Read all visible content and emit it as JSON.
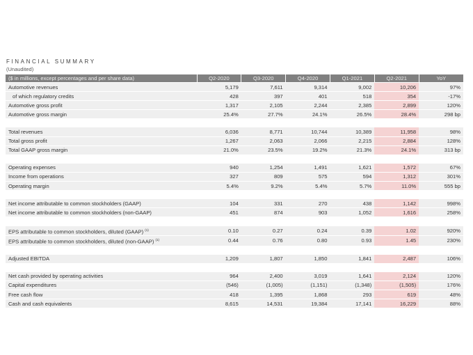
{
  "title": "FINANCIAL SUMMARY",
  "subtitle": "(Unaudited)",
  "header": [
    "($ in millions, except percentages and per share data)",
    "Q2-2020",
    "Q3-2020",
    "Q4-2020",
    "Q1-2021",
    "Q2-2021",
    "YoY"
  ],
  "highlight_color": "#f5d3d3",
  "groups": [
    [
      {
        "label": "Automotive revenues",
        "values": [
          "5,179",
          "7,611",
          "9,314",
          "9,002",
          "10,206",
          "97%"
        ]
      },
      {
        "label": "of which regulatory credits",
        "indent": true,
        "values": [
          "428",
          "397",
          "401",
          "518",
          "354",
          "-17%"
        ]
      },
      {
        "label": "Automotive gross profit",
        "values": [
          "1,317",
          "2,105",
          "2,244",
          "2,385",
          "2,899",
          "120%"
        ]
      },
      {
        "label": "Automotive gross margin",
        "values": [
          "25.4%",
          "27.7%",
          "24.1%",
          "26.5%",
          "28.4%",
          "298 bp"
        ]
      }
    ],
    [
      {
        "label": "Total revenues",
        "values": [
          "6,036",
          "8,771",
          "10,744",
          "10,389",
          "11,958",
          "98%"
        ]
      },
      {
        "label": "Total gross profit",
        "values": [
          "1,267",
          "2,063",
          "2,066",
          "2,215",
          "2,884",
          "128%"
        ]
      },
      {
        "label": "Total GAAP gross margin",
        "values": [
          "21.0%",
          "23.5%",
          "19.2%",
          "21.3%",
          "24.1%",
          "313 bp"
        ]
      }
    ],
    [
      {
        "label": "Operating expenses",
        "values": [
          "940",
          "1,254",
          "1,491",
          "1,621",
          "1,572",
          "67%"
        ]
      },
      {
        "label": "Income from operations",
        "values": [
          "327",
          "809",
          "575",
          "594",
          "1,312",
          "301%"
        ]
      },
      {
        "label": "Operating margin",
        "values": [
          "5.4%",
          "9.2%",
          "5.4%",
          "5.7%",
          "11.0%",
          "555 bp"
        ]
      }
    ],
    [
      {
        "label": "Net income attributable to common stockholders (GAAP)",
        "values": [
          "104",
          "331",
          "270",
          "438",
          "1,142",
          "998%"
        ]
      },
      {
        "label": "Net income attributable to common stockholders (non-GAAP)",
        "values": [
          "451",
          "874",
          "903",
          "1,052",
          "1,616",
          "258%"
        ]
      }
    ],
    [
      {
        "label": "EPS attributable to common stockholders, diluted (GAAP)",
        "note": "(1)",
        "values": [
          "0.10",
          "0.27",
          "0.24",
          "0.39",
          "1.02",
          "920%"
        ]
      },
      {
        "label": "EPS attributable to common stockholders, diluted (non-GAAP)",
        "note": "(1)",
        "values": [
          "0.44",
          "0.76",
          "0.80",
          "0.93",
          "1.45",
          "230%"
        ]
      }
    ],
    [
      {
        "label": "Adjusted EBITDA",
        "values": [
          "1,209",
          "1,807",
          "1,850",
          "1,841",
          "2,487",
          "106%"
        ]
      }
    ],
    [
      {
        "label": "Net cash provided by operating activities",
        "values": [
          "964",
          "2,400",
          "3,019",
          "1,641",
          "2,124",
          "120%"
        ]
      },
      {
        "label": "Capital expenditures",
        "values": [
          "(546)",
          "(1,005)",
          "(1,151)",
          "(1,348)",
          "(1,505)",
          "176%"
        ]
      },
      {
        "label": "Free cash flow",
        "values": [
          "418",
          "1,395",
          "1,868",
          "293",
          "619",
          "48%"
        ]
      },
      {
        "label": "Cash and cash equivalents",
        "values": [
          "8,615",
          "14,531",
          "19,384",
          "17,141",
          "16,229",
          "88%"
        ]
      }
    ]
  ]
}
